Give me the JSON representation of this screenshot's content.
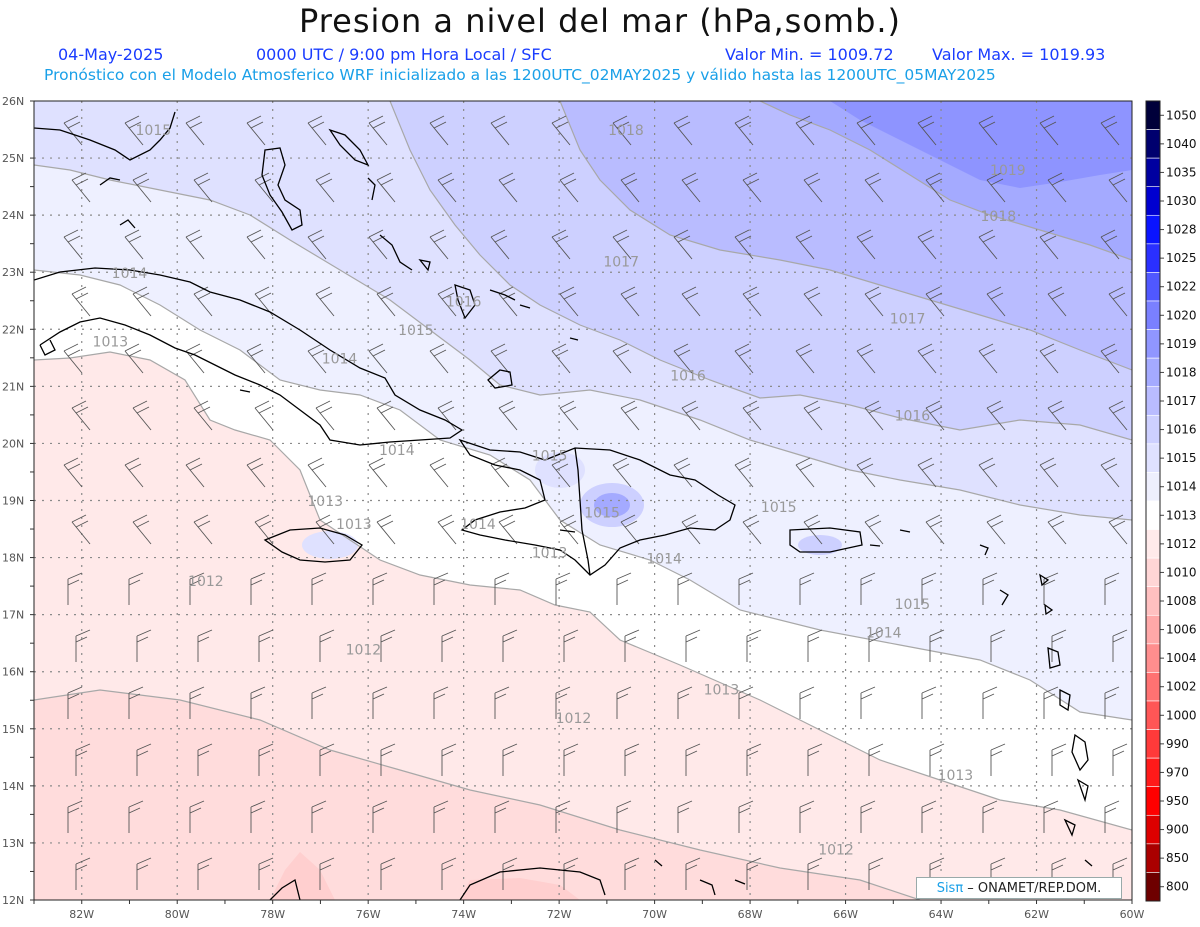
{
  "header": {
    "title": "Presion a nivel del mar (hPa,somb.)",
    "date": "04-May-2025",
    "time_info": "0000 UTC / 9:00 pm Hora Local / SFC",
    "min_label": "Valor Min. = 1009.72",
    "max_label": "Valor Max. = 1019.93",
    "model_info": "Pronóstico con el Modelo Atmosferico WRF inicializado a las 1200UTC_02MAY2025 y válido hasta las  1200UTC_05MAY2025"
  },
  "map": {
    "lat_labels": [
      "26N",
      "25N",
      "24N",
      "23N",
      "22N",
      "21N",
      "20N",
      "19N",
      "18N",
      "17N",
      "16N",
      "15N",
      "14N",
      "13N",
      "12N"
    ],
    "lon_labels": [
      "82W",
      "80W",
      "78W",
      "76W",
      "74W",
      "72W",
      "70W",
      "68W",
      "66W",
      "64W",
      "62W",
      "60W"
    ],
    "isobar_labels": [
      {
        "text": "1015",
        "lon": -80.5,
        "lat": 25.4
      },
      {
        "text": "1018",
        "lon": -70.6,
        "lat": 25.4
      },
      {
        "text": "1019",
        "lon": -62.6,
        "lat": 24.7
      },
      {
        "text": "1018",
        "lon": -62.8,
        "lat": 23.9
      },
      {
        "text": "1017",
        "lon": -70.7,
        "lat": 23.1
      },
      {
        "text": "1016",
        "lon": -74.0,
        "lat": 22.4
      },
      {
        "text": "1017",
        "lon": -64.7,
        "lat": 22.1
      },
      {
        "text": "1014",
        "lon": -81.0,
        "lat": 22.9
      },
      {
        "text": "1015",
        "lon": -75.0,
        "lat": 21.9
      },
      {
        "text": "1013",
        "lon": -81.4,
        "lat": 21.7
      },
      {
        "text": "1014",
        "lon": -76.6,
        "lat": 21.4
      },
      {
        "text": "1016",
        "lon": -69.3,
        "lat": 21.1
      },
      {
        "text": "1016",
        "lon": -64.6,
        "lat": 20.4
      },
      {
        "text": "1014",
        "lon": -75.4,
        "lat": 19.8
      },
      {
        "text": "1015",
        "lon": -72.2,
        "lat": 19.7
      },
      {
        "text": "1013",
        "lon": -76.9,
        "lat": 18.9
      },
      {
        "text": "1013",
        "lon": -76.3,
        "lat": 18.5
      },
      {
        "text": "1014",
        "lon": -73.7,
        "lat": 18.5
      },
      {
        "text": "1015",
        "lon": -71.1,
        "lat": 18.7
      },
      {
        "text": "1015",
        "lon": -67.4,
        "lat": 18.8
      },
      {
        "text": "1013",
        "lon": -72.2,
        "lat": 18.0
      },
      {
        "text": "1014",
        "lon": -69.8,
        "lat": 17.9
      },
      {
        "text": "1012",
        "lon": -79.4,
        "lat": 17.5
      },
      {
        "text": "1015",
        "lon": -64.6,
        "lat": 17.1
      },
      {
        "text": "1014",
        "lon": -65.2,
        "lat": 16.6
      },
      {
        "text": "1012",
        "lon": -76.1,
        "lat": 16.3
      },
      {
        "text": "1013",
        "lon": -68.6,
        "lat": 15.6
      },
      {
        "text": "1012",
        "lon": -71.7,
        "lat": 15.1
      },
      {
        "text": "1013",
        "lon": -63.7,
        "lat": 14.1
      },
      {
        "text": "1012",
        "lon": -66.2,
        "lat": 12.8
      }
    ]
  },
  "legend": {
    "levels": [
      {
        "label": "1050",
        "color": "#00003a"
      },
      {
        "label": "1040",
        "color": "#00006e"
      },
      {
        "label": "1035",
        "color": "#0000a0"
      },
      {
        "label": "1030",
        "color": "#0000d0"
      },
      {
        "label": "1028",
        "color": "#0a14ff"
      },
      {
        "label": "1025",
        "color": "#2a30ff"
      },
      {
        "label": "1022",
        "color": "#5058ff"
      },
      {
        "label": "1020",
        "color": "#7a80ff"
      },
      {
        "label": "1019",
        "color": "#9096ff"
      },
      {
        "label": "1018",
        "color": "#a4aaff"
      },
      {
        "label": "1017",
        "color": "#b9bcff"
      },
      {
        "label": "1016",
        "color": "#cdd0ff"
      },
      {
        "label": "1015",
        "color": "#dfe1ff"
      },
      {
        "label": "1014",
        "color": "#eeeffd"
      },
      {
        "label": "1013",
        "color": "#ffffff"
      },
      {
        "label": "1012",
        "color": "#ffeaea"
      },
      {
        "label": "1010",
        "color": "#ffd6d6"
      },
      {
        "label": "1008",
        "color": "#ffc0c0"
      },
      {
        "label": "1006",
        "color": "#ffa8a8"
      },
      {
        "label": "1004",
        "color": "#ff8e8e"
      },
      {
        "label": "1002",
        "color": "#ff7272"
      },
      {
        "label": "1000",
        "color": "#ff5656"
      },
      {
        "label": "990",
        "color": "#ff3a3a"
      },
      {
        "label": "970",
        "color": "#ff1a1a"
      },
      {
        "label": "950",
        "color": "#ff0000"
      },
      {
        "label": "900",
        "color": "#dd0000"
      },
      {
        "label": "850",
        "color": "#aa0000"
      },
      {
        "label": "800",
        "color": "#6e0000"
      }
    ]
  },
  "credit": {
    "brand": "Sisπ",
    "text": " – ONAMET/REP.DOM."
  }
}
